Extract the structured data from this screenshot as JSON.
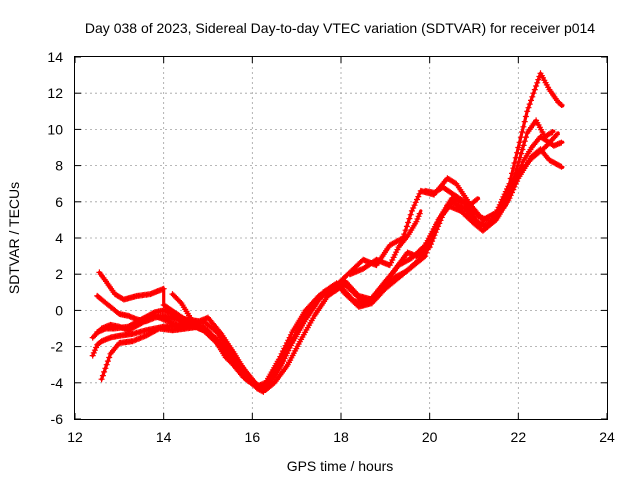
{
  "chart_data": {
    "type": "scatter",
    "title": "Day 038 of 2023, Sidereal Day-to-day VTEC variation (SDTVAR) for receiver p014",
    "xlabel": "GPS time / hours",
    "ylabel": "SDTVAR / TECUs",
    "xlim": [
      12,
      24
    ],
    "ylim": [
      -6,
      14
    ],
    "xticks": [
      12,
      14,
      16,
      18,
      20,
      22,
      24
    ],
    "yticks": [
      -6,
      -4,
      -2,
      0,
      2,
      4,
      6,
      8,
      10,
      12,
      14
    ],
    "grid": true,
    "marker": "plus",
    "color": "#ff0000",
    "series": [
      {
        "points": [
          [
            12.4,
            -2.5
          ],
          [
            12.5,
            -1.9
          ],
          [
            12.6,
            -1.7
          ],
          [
            12.8,
            -1.5
          ],
          [
            13.0,
            -1.4
          ],
          [
            13.3,
            -1.3
          ],
          [
            13.6,
            -1.1
          ],
          [
            14.0,
            -0.9
          ],
          [
            14.5,
            -0.8
          ],
          [
            14.9,
            -0.9
          ],
          [
            15.2,
            -1.6
          ],
          [
            15.5,
            -2.5
          ],
          [
            15.8,
            -3.5
          ],
          [
            16.1,
            -4.3
          ],
          [
            16.25,
            -4.5
          ],
          [
            16.5,
            -3.5
          ],
          [
            16.8,
            -2.0
          ],
          [
            17.2,
            -0.5
          ],
          [
            17.6,
            1.0
          ],
          [
            17.9,
            1.5
          ],
          [
            18.1,
            0.9
          ],
          [
            18.4,
            0.2
          ],
          [
            18.7,
            0.4
          ],
          [
            19.0,
            1.2
          ],
          [
            19.4,
            2.0
          ],
          [
            19.8,
            2.9
          ],
          [
            20.1,
            4.5
          ],
          [
            20.4,
            5.8
          ],
          [
            20.7,
            5.5
          ],
          [
            21.0,
            4.8
          ],
          [
            21.2,
            4.4
          ],
          [
            21.5,
            5.0
          ],
          [
            21.8,
            6.2
          ],
          [
            22.0,
            7.3
          ],
          [
            22.3,
            8.5
          ],
          [
            22.5,
            8.9
          ],
          [
            22.7,
            8.3
          ],
          [
            23.0,
            7.9
          ]
        ]
      },
      {
        "points": [
          [
            12.4,
            -1.5
          ],
          [
            12.6,
            -1.0
          ],
          [
            12.8,
            -0.8
          ],
          [
            13.0,
            -0.9
          ],
          [
            13.2,
            -1.1
          ],
          [
            13.5,
            -0.7
          ],
          [
            13.8,
            -0.3
          ],
          [
            14.1,
            -0.6
          ],
          [
            14.4,
            -0.9
          ],
          [
            14.7,
            -0.9
          ],
          [
            14.9,
            -0.6
          ],
          [
            15.2,
            -1.2
          ],
          [
            15.5,
            -2.3
          ],
          [
            15.8,
            -3.2
          ],
          [
            16.1,
            -4.1
          ],
          [
            16.3,
            -4.3
          ],
          [
            16.6,
            -3.2
          ],
          [
            16.9,
            -1.8
          ],
          [
            17.2,
            -0.5
          ],
          [
            17.5,
            0.6
          ],
          [
            17.8,
            1.3
          ],
          [
            18.1,
            1.6
          ],
          [
            18.4,
            0.8
          ],
          [
            18.7,
            0.6
          ],
          [
            19.0,
            1.5
          ],
          [
            19.3,
            2.5
          ],
          [
            19.6,
            2.9
          ],
          [
            19.9,
            3.6
          ],
          [
            20.2,
            5.0
          ],
          [
            20.5,
            6.2
          ],
          [
            20.8,
            5.9
          ],
          [
            21.1,
            4.8
          ],
          [
            21.3,
            4.6
          ],
          [
            21.6,
            5.6
          ],
          [
            21.9,
            7.0
          ],
          [
            22.1,
            8.2
          ],
          [
            22.3,
            9.0
          ],
          [
            22.5,
            9.6
          ],
          [
            22.8,
            9.1
          ],
          [
            23.0,
            9.3
          ]
        ]
      },
      {
        "points": [
          [
            12.5,
            0.8
          ],
          [
            12.6,
            0.6
          ],
          [
            12.8,
            0.2
          ],
          [
            13.0,
            -0.2
          ],
          [
            13.2,
            -0.3
          ],
          [
            13.4,
            -0.5
          ],
          [
            13.6,
            -0.6
          ],
          [
            13.8,
            -0.4
          ],
          [
            14.0,
            -0.3
          ],
          [
            14.3,
            -0.5
          ],
          [
            14.6,
            -0.8
          ],
          [
            14.9,
            -1.1
          ],
          [
            15.3,
            -2.0
          ],
          [
            15.6,
            -3.0
          ],
          [
            15.9,
            -3.9
          ],
          [
            16.2,
            -4.4
          ],
          [
            16.4,
            -4.0
          ],
          [
            16.7,
            -2.8
          ],
          [
            17.0,
            -1.2
          ],
          [
            17.3,
            0.2
          ],
          [
            17.6,
            1.0
          ],
          [
            17.9,
            1.4
          ],
          [
            18.2,
            2.1
          ],
          [
            18.5,
            2.8
          ],
          [
            18.8,
            2.5
          ],
          [
            19.1,
            3.6
          ],
          [
            19.4,
            4.0
          ],
          [
            19.6,
            5.5
          ],
          [
            19.8,
            6.6
          ],
          [
            20.1,
            6.4
          ],
          [
            20.4,
            7.3
          ],
          [
            20.6,
            7.0
          ],
          [
            20.9,
            5.9
          ],
          [
            21.2,
            5.0
          ],
          [
            21.5,
            5.4
          ],
          [
            21.8,
            7.0
          ],
          [
            22.0,
            9.0
          ],
          [
            22.2,
            11.0
          ],
          [
            22.4,
            12.4
          ],
          [
            22.5,
            13.1
          ],
          [
            22.7,
            12.2
          ],
          [
            22.9,
            11.5
          ],
          [
            23.0,
            11.3
          ]
        ]
      },
      {
        "points": [
          [
            12.55,
            2.1
          ],
          [
            12.7,
            1.6
          ],
          [
            12.9,
            0.9
          ],
          [
            13.1,
            0.6
          ],
          [
            13.4,
            0.8
          ],
          [
            13.7,
            0.9
          ],
          [
            14.0,
            1.2
          ],
          [
            14.0,
            0.3
          ],
          [
            14.3,
            -0.2
          ],
          [
            14.6,
            -0.7
          ],
          [
            14.9,
            -1.1
          ],
          [
            15.2,
            -1.8
          ],
          [
            15.5,
            -2.8
          ],
          [
            15.8,
            -3.7
          ],
          [
            16.1,
            -4.2
          ],
          [
            16.3,
            -4.0
          ],
          [
            16.6,
            -2.7
          ],
          [
            16.9,
            -1.2
          ],
          [
            17.2,
            0.0
          ],
          [
            17.5,
            0.8
          ],
          [
            17.8,
            1.2
          ],
          [
            18.1,
            1.4
          ],
          [
            18.4,
            0.7
          ],
          [
            18.6,
            0.5
          ],
          [
            18.9,
            1.0
          ],
          [
            19.2,
            1.8
          ],
          [
            19.5,
            2.2
          ],
          [
            19.9,
            3.0
          ],
          [
            20.2,
            5.0
          ],
          [
            20.5,
            6.0
          ],
          [
            20.8,
            5.6
          ],
          [
            21.0,
            4.9
          ],
          [
            21.3,
            4.7
          ],
          [
            21.6,
            5.5
          ],
          [
            21.9,
            7.3
          ],
          [
            22.2,
            9.8
          ],
          [
            22.4,
            10.5
          ],
          [
            22.6,
            9.6
          ],
          [
            22.8,
            9.9
          ]
        ]
      },
      {
        "points": [
          [
            12.5,
            -1.2
          ],
          [
            12.7,
            -1.0
          ],
          [
            12.9,
            -1.0
          ],
          [
            13.2,
            -0.9
          ],
          [
            13.5,
            -0.5
          ],
          [
            13.8,
            -0.1
          ],
          [
            14.0,
            0.0
          ],
          [
            14.2,
            -0.2
          ],
          [
            14.5,
            -0.5
          ],
          [
            14.8,
            -0.6
          ],
          [
            15.0,
            -0.4
          ],
          [
            15.3,
            -1.3
          ],
          [
            15.6,
            -2.4
          ],
          [
            15.9,
            -3.6
          ],
          [
            16.2,
            -4.4
          ],
          [
            16.3,
            -4.4
          ],
          [
            16.5,
            -4.0
          ],
          [
            16.8,
            -3.0
          ],
          [
            17.1,
            -1.6
          ],
          [
            17.4,
            -0.3
          ],
          [
            17.7,
            0.8
          ],
          [
            18.0,
            1.3
          ],
          [
            18.3,
            0.5
          ],
          [
            18.6,
            0.4
          ],
          [
            18.9,
            1.3
          ],
          [
            19.2,
            2.2
          ],
          [
            19.5,
            3.2
          ],
          [
            19.7,
            3.0
          ],
          [
            20.0,
            3.5
          ],
          [
            20.3,
            5.3
          ],
          [
            20.6,
            6.3
          ],
          [
            20.9,
            5.8
          ],
          [
            21.1,
            5.2
          ],
          [
            21.4,
            4.9
          ],
          [
            21.7,
            5.8
          ],
          [
            22.0,
            7.5
          ],
          [
            22.3,
            8.4
          ],
          [
            22.6,
            9.0
          ],
          [
            22.9,
            9.8
          ]
        ]
      },
      {
        "points": [
          [
            12.6,
            -3.8
          ],
          [
            12.8,
            -2.4
          ],
          [
            13.0,
            -1.8
          ],
          [
            13.3,
            -1.7
          ],
          [
            13.6,
            -1.4
          ],
          [
            13.9,
            -1.0
          ],
          [
            14.2,
            -1.1
          ],
          [
            14.5,
            -1.0
          ],
          [
            14.8,
            -0.9
          ],
          [
            15.1,
            -1.4
          ],
          [
            15.4,
            -2.6
          ],
          [
            15.7,
            -3.3
          ],
          [
            16.0,
            -4.0
          ],
          [
            16.2,
            -4.4
          ]
        ]
      },
      {
        "points": [
          [
            19.9,
            6.6
          ],
          [
            20.1,
            6.5
          ],
          [
            20.3,
            6.8
          ],
          [
            20.6,
            6.3
          ],
          [
            20.9,
            5.8
          ],
          [
            21.1,
            6.2
          ]
        ]
      },
      {
        "points": [
          [
            18.2,
            2.0
          ],
          [
            18.5,
            2.3
          ],
          [
            18.8,
            2.8
          ],
          [
            19.1,
            2.5
          ],
          [
            19.3,
            3.5
          ],
          [
            19.5,
            4.1
          ],
          [
            19.7,
            4.9
          ],
          [
            19.8,
            5.5
          ]
        ]
      },
      {
        "points": [
          [
            14.2,
            0.9
          ],
          [
            14.4,
            0.4
          ],
          [
            14.6,
            -0.4
          ],
          [
            14.8,
            -1.0
          ],
          [
            15.0,
            -1.2
          ]
        ]
      }
    ]
  }
}
